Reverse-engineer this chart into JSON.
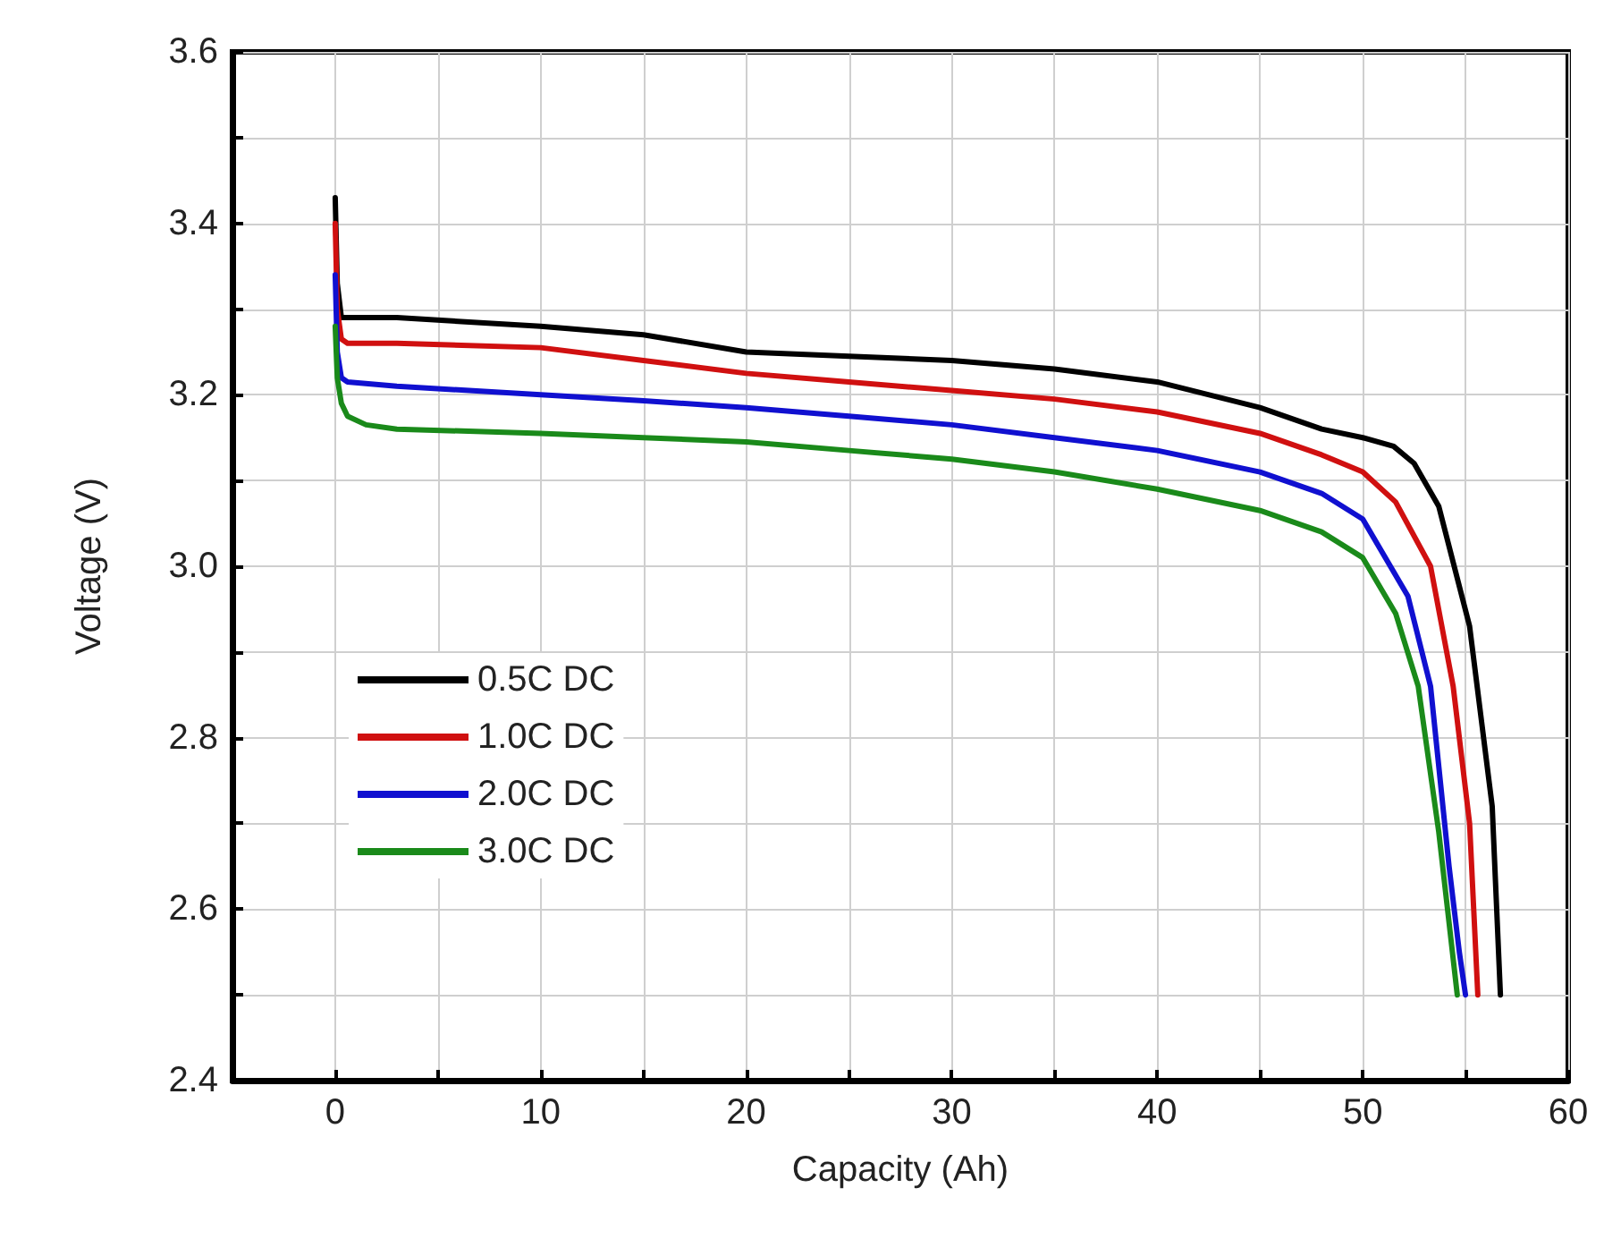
{
  "chart_data": {
    "type": "line",
    "xlabel": "Capacity (Ah)",
    "ylabel": "Voltage (V)",
    "xlim": [
      -5,
      60
    ],
    "ylim": [
      2.4,
      3.6
    ],
    "xticks": [
      {
        "value": -5,
        "label": null
      },
      0,
      {
        "value": 5,
        "label": null
      },
      10,
      {
        "value": 15,
        "label": null
      },
      20,
      {
        "value": 25,
        "label": null
      },
      30,
      {
        "value": 35,
        "label": null
      },
      40,
      {
        "value": 45,
        "label": null
      },
      50,
      {
        "value": 55,
        "label": null
      },
      60
    ],
    "yticks": [
      2.4,
      {
        "value": 2.5,
        "label": null
      },
      2.6,
      {
        "value": 2.7,
        "label": null
      },
      2.8,
      {
        "value": 2.9,
        "label": null
      },
      {
        "value": 3.0,
        "label": "3.0"
      },
      {
        "value": 3.1,
        "label": null
      },
      3.2,
      {
        "value": 3.3,
        "label": null
      },
      3.4,
      {
        "value": 3.5,
        "label": null
      },
      3.6
    ],
    "grid": true,
    "legend": "left",
    "marker": "none",
    "line_style": "solid",
    "series": [
      {
        "name": "0.5C DC",
        "color": "#000000",
        "x": [
          0,
          0.1,
          0.3,
          0.6,
          3,
          10,
          15,
          20,
          25,
          30,
          35,
          40,
          45,
          48,
          50,
          51.5,
          52.5,
          53.7,
          55.2,
          56.3,
          56.7
        ],
        "values": [
          3.43,
          3.33,
          3.29,
          3.29,
          3.29,
          3.28,
          3.27,
          3.25,
          3.245,
          3.24,
          3.23,
          3.215,
          3.185,
          3.16,
          3.15,
          3.14,
          3.12,
          3.07,
          2.93,
          2.72,
          2.5
        ]
      },
      {
        "name": "1.0C DC",
        "color": "#d01010",
        "x": [
          0,
          0.1,
          0.3,
          0.6,
          3,
          10,
          15,
          20,
          25,
          30,
          35,
          40,
          45,
          48,
          50,
          51.6,
          53.3,
          54.4,
          55.2,
          55.6
        ],
        "values": [
          3.4,
          3.3,
          3.265,
          3.26,
          3.26,
          3.255,
          3.24,
          3.225,
          3.215,
          3.205,
          3.195,
          3.18,
          3.155,
          3.13,
          3.11,
          3.075,
          3.0,
          2.86,
          2.7,
          2.5
        ]
      },
      {
        "name": "2.0C DC",
        "color": "#1010d0",
        "x": [
          0,
          0.1,
          0.3,
          0.6,
          3,
          10,
          15,
          20,
          25,
          30,
          35,
          40,
          45,
          48,
          50,
          52.2,
          53.3,
          54.2,
          54.7,
          55.0
        ],
        "values": [
          3.34,
          3.25,
          3.22,
          3.215,
          3.21,
          3.2,
          3.193,
          3.185,
          3.175,
          3.165,
          3.15,
          3.135,
          3.11,
          3.085,
          3.055,
          2.965,
          2.86,
          2.65,
          2.55,
          2.5
        ]
      },
      {
        "name": "3.0C DC",
        "color": "#1a8a1a",
        "x": [
          0,
          0.1,
          0.3,
          0.6,
          1.5,
          3,
          10,
          15,
          20,
          25,
          30,
          35,
          40,
          45,
          48,
          50,
          51.6,
          52.7,
          53.7,
          54.6
        ],
        "values": [
          3.28,
          3.22,
          3.19,
          3.175,
          3.165,
          3.16,
          3.155,
          3.15,
          3.145,
          3.135,
          3.125,
          3.11,
          3.09,
          3.065,
          3.04,
          3.01,
          2.945,
          2.86,
          2.69,
          2.5
        ]
      }
    ]
  }
}
